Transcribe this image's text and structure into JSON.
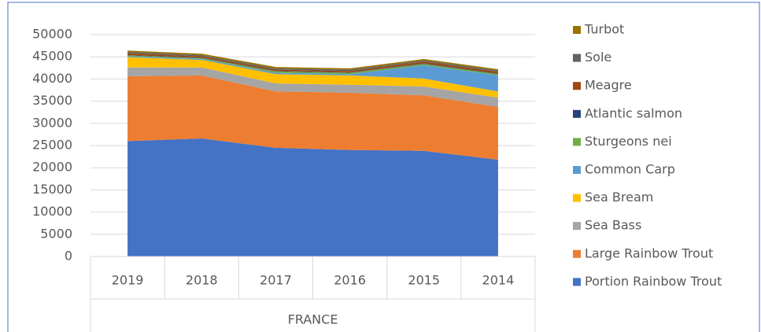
{
  "chart_data": {
    "type": "stacked_area",
    "categories": [
      "2019",
      "2018",
      "2017",
      "2016",
      "2015",
      "2014"
    ],
    "group_label": "FRANCE",
    "ylim": [
      0,
      50000
    ],
    "yticks": [
      0,
      5000,
      10000,
      15000,
      20000,
      25000,
      30000,
      35000,
      40000,
      45000,
      50000
    ],
    "grid": true,
    "legend": "right",
    "series": [
      {
        "name": "Portion Rainbow Trout",
        "color": "#4472c4",
        "values": [
          26000,
          26600,
          24500,
          24000,
          23800,
          21800
        ]
      },
      {
        "name": "Large Rainbow Trout",
        "color": "#ed7d31",
        "values": [
          14600,
          14200,
          12700,
          12900,
          12500,
          11900
        ]
      },
      {
        "name": "Sea Bass",
        "color": "#a5a5a5",
        "values": [
          2000,
          1800,
          1800,
          1800,
          2000,
          2100
        ]
      },
      {
        "name": "Sea Bream",
        "color": "#ffc000",
        "values": [
          2300,
          1700,
          2100,
          2100,
          1800,
          1400
        ]
      },
      {
        "name": "Common Carp",
        "color": "#5b9bd5",
        "values": [
          200,
          200,
          300,
          300,
          3000,
          3600
        ]
      },
      {
        "name": "Sturgeons nei",
        "color": "#70ad47",
        "values": [
          200,
          200,
          300,
          300,
          300,
          300
        ]
      },
      {
        "name": "Atlantic salmon",
        "color": "#264478",
        "values": [
          100,
          100,
          100,
          100,
          100,
          100
        ]
      },
      {
        "name": "Meagre",
        "color": "#9e480e",
        "values": [
          400,
          300,
          300,
          300,
          400,
          400
        ]
      },
      {
        "name": "Sole",
        "color": "#636363",
        "values": [
          300,
          300,
          300,
          300,
          300,
          300
        ]
      },
      {
        "name": "Turbot",
        "color": "#997300",
        "values": [
          300,
          300,
          300,
          300,
          300,
          300
        ]
      }
    ]
  }
}
